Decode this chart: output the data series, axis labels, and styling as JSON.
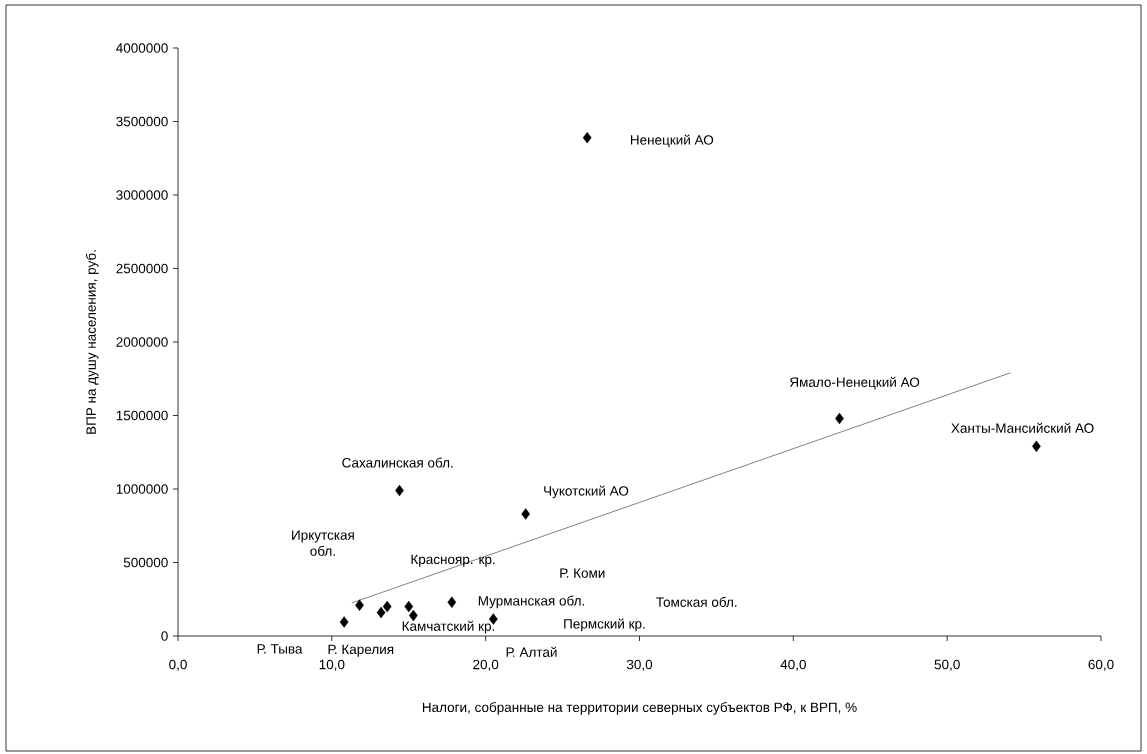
{
  "chart_data": {
    "type": "scatter",
    "xlabel": "Налоги, собранные на территории северных субъектов РФ, к ВРП, %",
    "ylabel": "ВПР на душу населения, руб.",
    "xlim": [
      0,
      60
    ],
    "ylim": [
      0,
      4000000
    ],
    "xticks": [
      {
        "value": 0,
        "label": "0,0"
      },
      {
        "value": 10,
        "label": "10,0"
      },
      {
        "value": 20,
        "label": "20,0"
      },
      {
        "value": 30,
        "label": "30,0"
      },
      {
        "value": 40,
        "label": "40,0"
      },
      {
        "value": 50,
        "label": "50,0"
      },
      {
        "value": 60,
        "label": "60,0"
      }
    ],
    "yticks": [
      0,
      500000,
      1000000,
      1500000,
      2000000,
      2500000,
      3000000,
      3500000,
      4000000
    ],
    "grid": false,
    "series": [
      {
        "marker": "diamond",
        "color": "#000000",
        "x": [
          26.6,
          43.0,
          55.8,
          14.4,
          22.6,
          10.8,
          11.8,
          13.2,
          13.6,
          15.0,
          15.3,
          17.8,
          20.5
        ],
        "values": [
          3390000,
          1480000,
          1290000,
          990000,
          830000,
          95000,
          210000,
          160000,
          200000,
          200000,
          140000,
          230000,
          115000
        ]
      },
      {
        "type": "line",
        "color": "#000000",
        "x": [
          11.3,
          54.1
        ],
        "values": [
          225000,
          1790000
        ]
      }
    ],
    "annotations": [
      "Ненецкий АО",
      "Ямало-Ненецкий АО",
      "Ханты-Мансийский АО",
      "Сахалинская обл.",
      "Чукотский АО",
      "Иркутская обл.",
      "Краснояр. кр.",
      "Р. Коми",
      "Мурманская обл.",
      "Томская обл.",
      "Пермский кр.",
      "Камчатский кр.",
      "Р. Тыва",
      "Р. Карелия",
      "Р. Алтай"
    ]
  }
}
